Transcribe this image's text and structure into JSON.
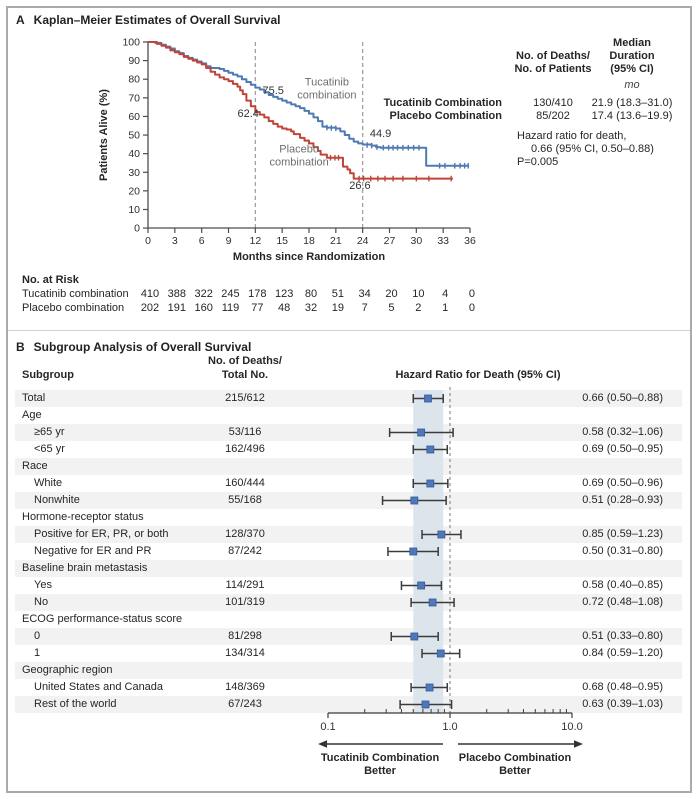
{
  "figure": {
    "panel_a": {
      "letter": "A",
      "title": "Kaplan–Meier Estimates of Overall Survival",
      "y_axis_label": "Patients Alive (%)",
      "x_axis_label": "Months since Randomization",
      "stats": {
        "col_deaths_header": [
          "No. of Deaths/",
          "No. of Patients"
        ],
        "col_median_header": [
          "Median",
          "Duration",
          "(95% CI)"
        ],
        "unit": "mo",
        "rows": [
          {
            "label": "Tucatinib Combination",
            "deaths": "130/410",
            "median": "21.9 (18.3–31.0)"
          },
          {
            "label": "Placebo Combination",
            "deaths": "85/202",
            "median": "17.4 (13.6–19.9)"
          }
        ],
        "hazard_line1": "Hazard ratio for death,",
        "hazard_line2": "0.66 (95% CI, 0.50–0.88)",
        "p_value": "P=0.005"
      },
      "at_risk": {
        "title": "No. at Risk",
        "rows": [
          {
            "label": "Tucatinib combination",
            "values": [
              410,
              388,
              322,
              245,
              178,
              123,
              80,
              51,
              34,
              20,
              10,
              4,
              0
            ]
          },
          {
            "label": "Placebo combination",
            "values": [
              202,
              191,
              160,
              119,
              77,
              48,
              32,
              19,
              7,
              5,
              2,
              1,
              0
            ]
          }
        ]
      }
    },
    "panel_b": {
      "letter": "B",
      "title": "Subgroup Analysis of Overall Survival",
      "col_subgroup": "Subgroup",
      "col_deaths_line1": "No. of Deaths/",
      "col_deaths_line2": "Total No.",
      "col_hr": "Hazard Ratio for Death (95% CI)",
      "left_better_line1": "Tucatinib Combination",
      "left_better_line2": "Better",
      "right_better_line1": "Placebo Combination",
      "right_better_line2": "Better"
    }
  },
  "colors": {
    "tucatinib": "#4f7ab3",
    "placebo": "#c04539",
    "stripe": "#f2f2f3",
    "band": "#dce4ec",
    "marker": "#4d79b8",
    "marker_edge": "#39599c",
    "bar": "#3b3b3b",
    "dash": "#9b9b9b",
    "axis": "#4d4d4d",
    "gray_label": "#6d6e71"
  },
  "chart_data": [
    {
      "type": "line",
      "kind": "kaplan-meier",
      "title": "Kaplan–Meier Estimates of Overall Survival",
      "xlabel": "Months since Randomization",
      "ylabel": "Patients Alive (%)",
      "xlim": [
        0,
        36
      ],
      "ylim": [
        0,
        100
      ],
      "x_ticks": [
        0,
        3,
        6,
        9,
        12,
        15,
        18,
        21,
        24,
        27,
        30,
        33,
        36
      ],
      "y_ticks": [
        100,
        90,
        80,
        70,
        60,
        50,
        40,
        30,
        20,
        10,
        0
      ],
      "reference_lines_x": [
        12,
        24
      ],
      "annotations": [
        {
          "text": "75.5",
          "month": 14.0,
          "pct": 74.2
        },
        {
          "text": "62.4",
          "month": 11.2,
          "pct": 61.9
        },
        {
          "text": "44.9",
          "month": 26.0,
          "pct": 51.0
        },
        {
          "text": "26.6",
          "month": 23.7,
          "pct": 23.2
        }
      ],
      "series": [
        {
          "name": "Tucatinib combination",
          "color_key": "tucatinib",
          "label": {
            "lines": [
              "Tucatinib",
              "combination"
            ],
            "month": 20.0,
            "pct": 76.5
          },
          "steps": [
            [
              0,
              100
            ],
            [
              0.8,
              99.5
            ],
            [
              1.5,
              98.5
            ],
            [
              2,
              97.5
            ],
            [
              2.5,
              96.5
            ],
            [
              3,
              95
            ],
            [
              3.5,
              94
            ],
            [
              4,
              92.5
            ],
            [
              4.5,
              91.5
            ],
            [
              5,
              90.5
            ],
            [
              5.5,
              89.5
            ],
            [
              6,
              88.5
            ],
            [
              6.5,
              87
            ],
            [
              7,
              86
            ],
            [
              8,
              85.5
            ],
            [
              8.5,
              84.5
            ],
            [
              9,
              83.5
            ],
            [
              9.5,
              82.5
            ],
            [
              10,
              81.5
            ],
            [
              10.5,
              80
            ],
            [
              11,
              78.5
            ],
            [
              11.5,
              77
            ],
            [
              12,
              75.5
            ],
            [
              12.5,
              74.5
            ],
            [
              13,
              73
            ],
            [
              13.5,
              71.5
            ],
            [
              14,
              70.5
            ],
            [
              14.5,
              69.5
            ],
            [
              15,
              68.5
            ],
            [
              15.5,
              67.5
            ],
            [
              16,
              66.5
            ],
            [
              16.5,
              65.5
            ],
            [
              17,
              64.5
            ],
            [
              17.5,
              63
            ],
            [
              18,
              61.5
            ],
            [
              18.5,
              59.5
            ],
            [
              19,
              57.5
            ],
            [
              19.5,
              54.5
            ],
            [
              20,
              54
            ],
            [
              21,
              53.5
            ],
            [
              21.5,
              52
            ],
            [
              22,
              50
            ],
            [
              22.5,
              48
            ],
            [
              23,
              46.5
            ],
            [
              23.5,
              45.5
            ],
            [
              24,
              44.9
            ],
            [
              25,
              44.3
            ],
            [
              25.5,
              43.5
            ],
            [
              26,
              43.2
            ],
            [
              31,
              43.2
            ],
            [
              31.1,
              33.5
            ],
            [
              35.8,
              33.5
            ]
          ],
          "censors": [
            [
              20,
              54
            ],
            [
              20.5,
              53.8
            ],
            [
              21,
              53.6
            ],
            [
              24.5,
              44.6
            ],
            [
              25,
              44.3
            ],
            [
              25.6,
              43.5
            ],
            [
              26.3,
              43.2
            ],
            [
              26.9,
              43.2
            ],
            [
              27.4,
              43.2
            ],
            [
              27.9,
              43.2
            ],
            [
              28.5,
              43.2
            ],
            [
              29.1,
              43.2
            ],
            [
              29.7,
              43.2
            ],
            [
              30.3,
              43.2
            ],
            [
              32.6,
              33.5
            ],
            [
              33.2,
              33.5
            ],
            [
              34.3,
              33.5
            ],
            [
              34.9,
              33.5
            ],
            [
              35.4,
              33.5
            ],
            [
              35.8,
              33.5
            ]
          ]
        },
        {
          "name": "Placebo combination",
          "color_key": "placebo",
          "label": {
            "lines": [
              "Placebo",
              "combination"
            ],
            "month": 16.9,
            "pct": 40.5
          },
          "steps": [
            [
              0,
              100
            ],
            [
              1,
              99
            ],
            [
              1.5,
              98
            ],
            [
              2,
              97
            ],
            [
              2.5,
              95.5
            ],
            [
              3,
              94.5
            ],
            [
              3.5,
              93.5
            ],
            [
              4,
              92
            ],
            [
              4.5,
              91
            ],
            [
              5,
              90
            ],
            [
              5.5,
              89
            ],
            [
              6,
              88
            ],
            [
              6.5,
              86
            ],
            [
              7,
              84
            ],
            [
              7.5,
              82.5
            ],
            [
              8,
              81
            ],
            [
              8.5,
              80
            ],
            [
              9,
              79
            ],
            [
              9.5,
              77.5
            ],
            [
              10,
              76
            ],
            [
              10.3,
              74
            ],
            [
              10.6,
              72
            ],
            [
              11,
              68.5
            ],
            [
              11.5,
              65.5
            ],
            [
              12,
              62.4
            ],
            [
              12.5,
              61
            ],
            [
              13,
              59.5
            ],
            [
              13.5,
              57.5
            ],
            [
              14,
              56
            ],
            [
              14.5,
              54.5
            ],
            [
              15,
              53.5
            ],
            [
              15.5,
              53
            ],
            [
              16,
              52
            ],
            [
              16.3,
              50.5
            ],
            [
              17,
              48.5
            ],
            [
              17.5,
              47
            ],
            [
              18,
              45.5
            ],
            [
              18.5,
              43.5
            ],
            [
              19,
              41.5
            ],
            [
              19.3,
              39.5
            ],
            [
              20,
              37.8
            ],
            [
              21.6,
              37.8
            ],
            [
              21.8,
              33
            ],
            [
              22.3,
              31.5
            ],
            [
              22.6,
              29.5
            ],
            [
              23,
              26.6
            ],
            [
              34,
              26.6
            ]
          ],
          "censors": [
            [
              20.4,
              37.8
            ],
            [
              20.9,
              37.8
            ],
            [
              21.3,
              37.8
            ],
            [
              23.6,
              26.6
            ],
            [
              24.1,
              26.6
            ],
            [
              24.9,
              26.6
            ],
            [
              25.7,
              26.6
            ],
            [
              26.5,
              26.6
            ],
            [
              27.4,
              26.6
            ],
            [
              28.5,
              26.6
            ],
            [
              30,
              26.6
            ],
            [
              31.4,
              26.6
            ],
            [
              33.9,
              26.6
            ]
          ]
        }
      ]
    },
    {
      "type": "forest",
      "x_scale": "log",
      "x_ticks": [
        0.1,
        1.0,
        10.0
      ],
      "x_tick_labels": [
        "0.1",
        "1.0",
        "10.0"
      ],
      "reference_line": 1.0,
      "shaded_band": [
        0.5,
        0.88
      ],
      "rows": [
        {
          "label": "Total",
          "indent": false,
          "deaths": "215/612",
          "hr": 0.66,
          "lo": 0.5,
          "hi": 0.88,
          "text": "0.66 (0.50–0.88)"
        },
        {
          "label": "Age",
          "header": true
        },
        {
          "label": "≥65 yr",
          "indent": true,
          "deaths": "53/116",
          "hr": 0.58,
          "lo": 0.32,
          "hi": 1.06,
          "text": "0.58 (0.32–1.06)"
        },
        {
          "label": "<65 yr",
          "indent": true,
          "deaths": "162/496",
          "hr": 0.69,
          "lo": 0.5,
          "hi": 0.95,
          "text": "0.69 (0.50–0.95)"
        },
        {
          "label": "Race",
          "header": true
        },
        {
          "label": "White",
          "indent": true,
          "deaths": "160/444",
          "hr": 0.69,
          "lo": 0.5,
          "hi": 0.96,
          "text": "0.69 (0.50–0.96)"
        },
        {
          "label": "Nonwhite",
          "indent": true,
          "deaths": "55/168",
          "hr": 0.51,
          "lo": 0.28,
          "hi": 0.93,
          "text": "0.51 (0.28–0.93)"
        },
        {
          "label": "Hormone-receptor status",
          "header": true
        },
        {
          "label": "Positive for ER, PR, or both",
          "indent": true,
          "deaths": "128/370",
          "hr": 0.85,
          "lo": 0.59,
          "hi": 1.23,
          "text": "0.85 (0.59–1.23)"
        },
        {
          "label": "Negative for ER and PR",
          "indent": true,
          "deaths": "87/242",
          "hr": 0.5,
          "lo": 0.31,
          "hi": 0.8,
          "text": "0.50 (0.31–0.80)"
        },
        {
          "label": "Baseline brain metastasis",
          "header": true
        },
        {
          "label": "Yes",
          "indent": true,
          "deaths": "114/291",
          "hr": 0.58,
          "lo": 0.4,
          "hi": 0.85,
          "text": "0.58 (0.40–0.85)"
        },
        {
          "label": "No",
          "indent": true,
          "deaths": "101/319",
          "hr": 0.72,
          "lo": 0.48,
          "hi": 1.08,
          "text": "0.72 (0.48–1.08)"
        },
        {
          "label": "ECOG performance-status score",
          "header": true
        },
        {
          "label": "0",
          "indent": true,
          "deaths": "81/298",
          "hr": 0.51,
          "lo": 0.33,
          "hi": 0.8,
          "text": "0.51 (0.33–0.80)"
        },
        {
          "label": "1",
          "indent": true,
          "deaths": "134/314",
          "hr": 0.84,
          "lo": 0.59,
          "hi": 1.2,
          "text": "0.84 (0.59–1.20)"
        },
        {
          "label": "Geographic region",
          "header": true
        },
        {
          "label": "United States and Canada",
          "indent": true,
          "deaths": "148/369",
          "hr": 0.68,
          "lo": 0.48,
          "hi": 0.95,
          "text": "0.68 (0.48–0.95)"
        },
        {
          "label": "Rest of the world",
          "indent": true,
          "deaths": "67/243",
          "hr": 0.63,
          "lo": 0.39,
          "hi": 1.03,
          "text": "0.63 (0.39–1.03)"
        }
      ]
    }
  ]
}
